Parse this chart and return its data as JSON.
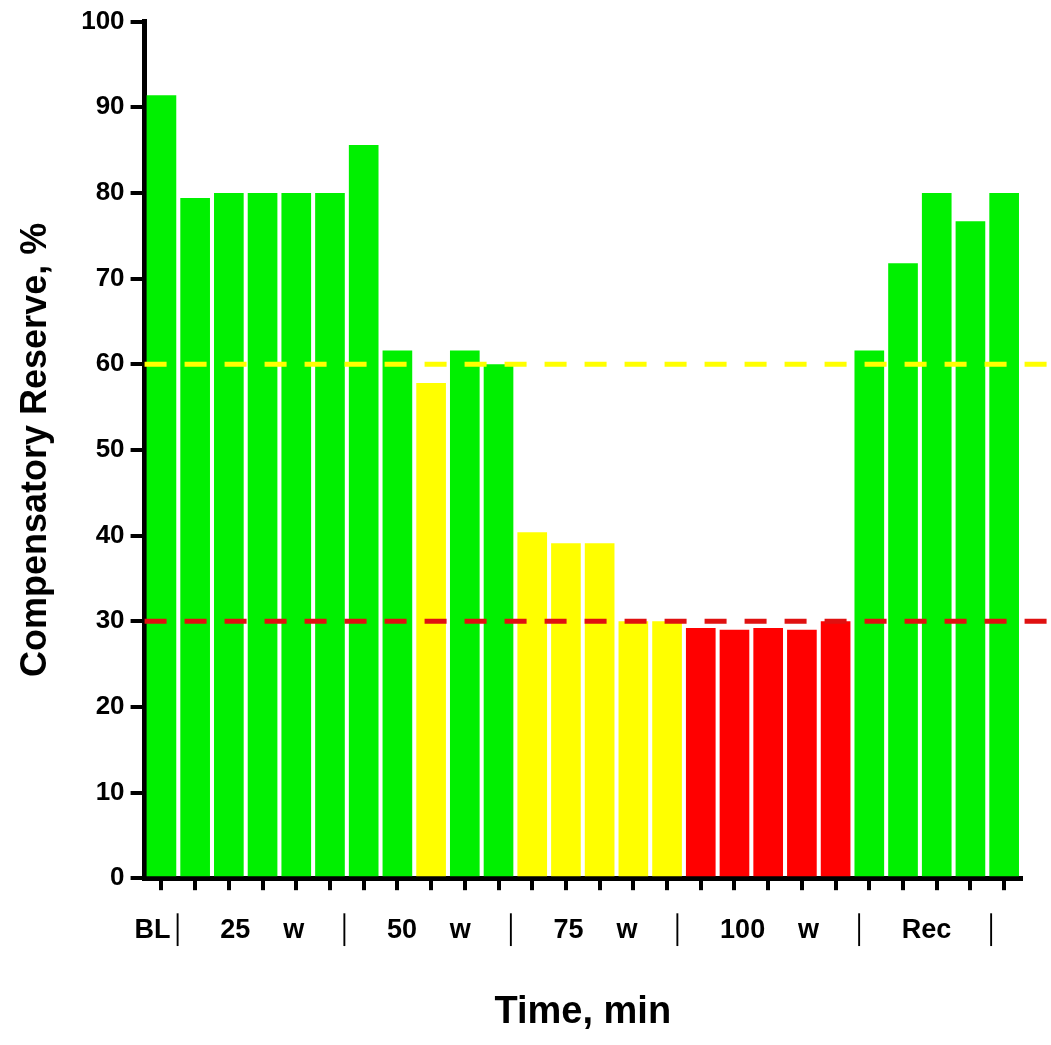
{
  "chart_data": {
    "type": "bar",
    "xlabel": "Time, min",
    "ylabel": "Compensatory Reserve, %",
    "categories": [
      null,
      null,
      null,
      null,
      null,
      null,
      null,
      null,
      null,
      null,
      null,
      null,
      null,
      null,
      null,
      null,
      null,
      null,
      null,
      null,
      null,
      null,
      null,
      null,
      null,
      null
    ],
    "values": [
      91.4,
      79.4,
      80,
      80,
      80,
      80,
      85.6,
      61.6,
      57.8,
      61.6,
      60,
      40.4,
      39.1,
      39.1,
      30,
      30,
      29.2,
      29,
      29.2,
      29,
      30,
      61.6,
      71.8,
      80,
      76.7,
      80
    ],
    "colors": [
      "#00f000",
      "#00f000",
      "#00f000",
      "#00f000",
      "#00f000",
      "#00f000",
      "#00f000",
      "#00f000",
      "#ffff00",
      "#00f000",
      "#00f000",
      "#ffff00",
      "#ffff00",
      "#ffff00",
      "#ffff00",
      "#ffff00",
      "#ff0000",
      "#ff0000",
      "#ff0000",
      "#ff0000",
      "#ff0000",
      "#00f000",
      "#00f000",
      "#00f000",
      "#00f000",
      "#00f000"
    ],
    "ylim": [
      0,
      100
    ],
    "yticks": [
      0,
      10,
      20,
      30,
      40,
      50,
      60,
      70,
      80,
      90,
      100
    ],
    "ref_lines": [
      {
        "axis": "y",
        "value": 60,
        "color": "#ffff00",
        "line_style": "dashed"
      },
      {
        "axis": "y",
        "value": 30,
        "color": "#e01010",
        "line_style": "dashed"
      }
    ],
    "annotations": [
      "BL│ 25 w │ 50 w │ 75 w │ 100 w │ Rec │"
    ],
    "grid": false,
    "legend": false
  }
}
